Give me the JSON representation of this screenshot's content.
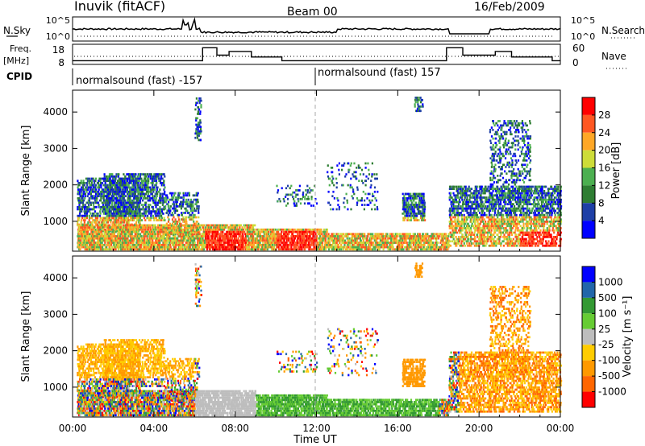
{
  "header": {
    "station": "Inuvik (fitACF)",
    "beam": "Beam 00",
    "date": "16/Feb/2009"
  },
  "noise_panel": {
    "left_label": "N.Sky",
    "left_ticks": [
      "10^5",
      "10^0"
    ],
    "right_label": "N.Search",
    "right_ticks": [
      "10^5",
      "10^0"
    ]
  },
  "freq_panel": {
    "left_label_line1": "Freq.",
    "left_label_line2": "[MHz]",
    "left_ticks": [
      "18",
      "8"
    ],
    "right_label": "Nave",
    "right_ticks": [
      "60",
      "0"
    ],
    "cpid_label": "CPID",
    "cpid_segments": [
      "normalsound (fast) -157",
      "normalsound (fast) 157"
    ]
  },
  "colors": {
    "power": [
      "#0000ff",
      "#1e3fa6",
      "#2e7d32",
      "#4caf50",
      "#cddc39",
      "#ffa726",
      "#ff5722",
      "#ff0000"
    ],
    "velocity": [
      "#ff0000",
      "#ff6600",
      "#ff9900",
      "#ffcc00",
      "#bdbdbd",
      "#66cc33",
      "#339933",
      "#2266aa",
      "#0000ff"
    ]
  },
  "chart_data": [
    {
      "type": "heatmap",
      "title": "Power",
      "ylabel": "Slant Range [km]",
      "yticks": [
        "1000",
        "2000",
        "3000",
        "4000"
      ],
      "ylim": [
        180,
        4600
      ],
      "xlim": [
        0,
        24
      ],
      "colorbar_label": "Power [dB]",
      "colorbar_ticks": [
        "4",
        "8",
        "12",
        "16",
        "20",
        "24",
        "28"
      ]
    },
    {
      "type": "heatmap",
      "title": "Velocity",
      "ylabel": "Slant Range [km]",
      "yticks": [
        "1000",
        "2000",
        "3000",
        "4000"
      ],
      "ylim": [
        180,
        4600
      ],
      "xlim": [
        0,
        24
      ],
      "xticks": [
        "00:00",
        "04:00",
        "08:00",
        "12:00",
        "16:00",
        "20:00",
        "00:00"
      ],
      "xlabel": "Time UT",
      "colorbar_label": "Velocity [m s⁻¹]",
      "colorbar_ticks": [
        "1000",
        "500",
        "100",
        "25",
        "-25",
        "-100",
        "-500",
        "-1000"
      ]
    },
    {
      "type": "line",
      "title": "Frequency",
      "x": [
        0,
        6.4,
        6.4,
        7.1,
        7.1,
        7.7,
        7.7,
        8.8,
        8.8,
        10.3,
        10.3,
        18.4,
        18.4,
        19.2,
        19.2,
        20.8,
        20.8,
        21.6,
        21.6,
        23.6,
        23.6,
        24
      ],
      "y": [
        10,
        10,
        17,
        17,
        13,
        13,
        15,
        15,
        12,
        12,
        10,
        10,
        17,
        17,
        13,
        13,
        15,
        15,
        12,
        12,
        10,
        10
      ]
    }
  ]
}
